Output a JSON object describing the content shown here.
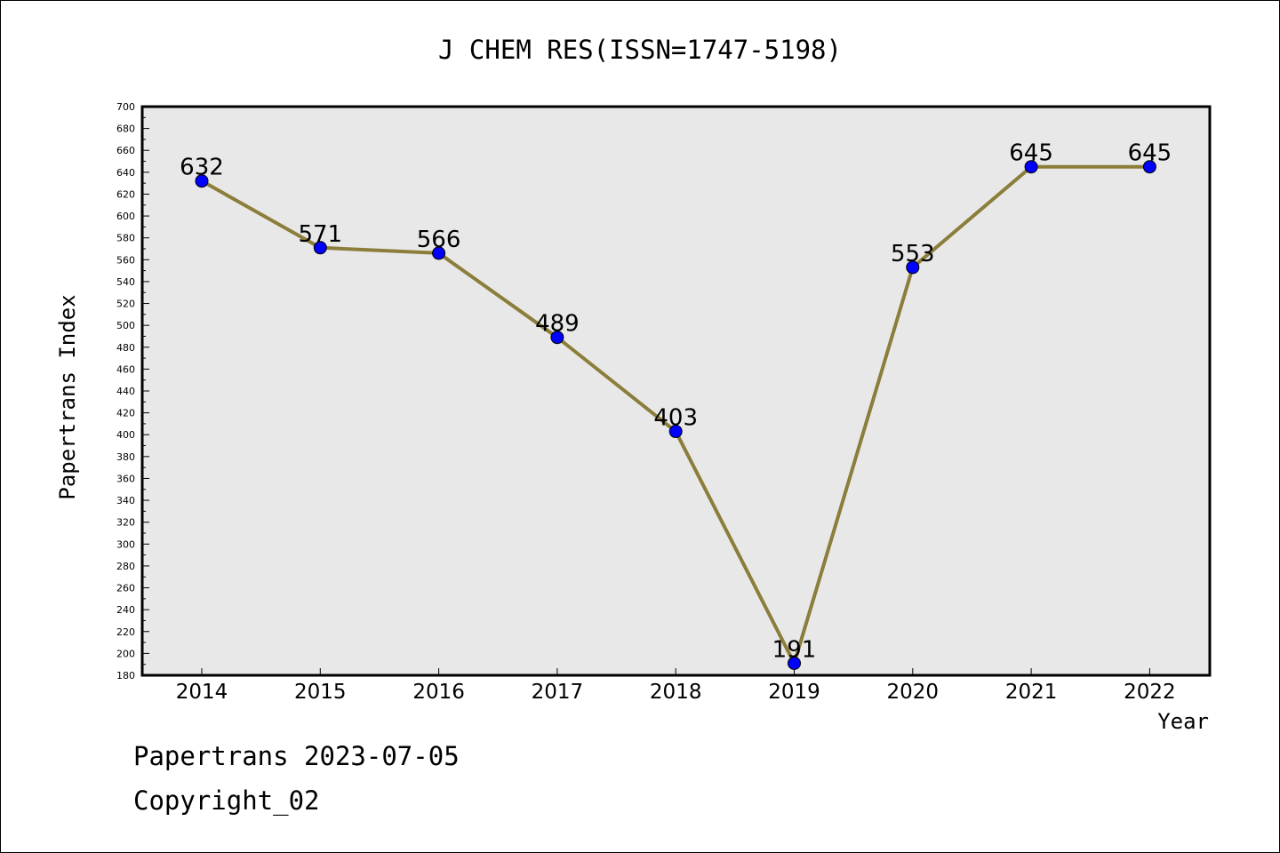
{
  "chart_data": {
    "type": "line",
    "title": "J CHEM RES(ISSN=1747-5198)",
    "xlabel": "Year",
    "ylabel": "Papertrans Index",
    "categories": [
      "2014",
      "2015",
      "2016",
      "2017",
      "2018",
      "2019",
      "2020",
      "2021",
      "2022"
    ],
    "values": [
      632,
      571,
      566,
      489,
      403,
      191,
      553,
      645,
      645
    ],
    "data_labels": [
      "632",
      "571",
      "566",
      "489",
      "403",
      "191",
      "553",
      "645",
      "645"
    ],
    "ylim": [
      180,
      700
    ],
    "yticks": [
      180,
      200,
      220,
      240,
      260,
      280,
      300,
      320,
      340,
      360,
      380,
      400,
      420,
      440,
      460,
      480,
      500,
      520,
      540,
      560,
      580,
      600,
      620,
      640,
      660,
      680,
      700
    ],
    "line_color": "#8B7D3A",
    "marker_color": "#0000FF",
    "plot_background": "#E8E8E8",
    "grid": false,
    "legend": "none"
  },
  "footer": {
    "line1": "Papertrans 2023-07-05",
    "line2": "Copyright_02"
  }
}
